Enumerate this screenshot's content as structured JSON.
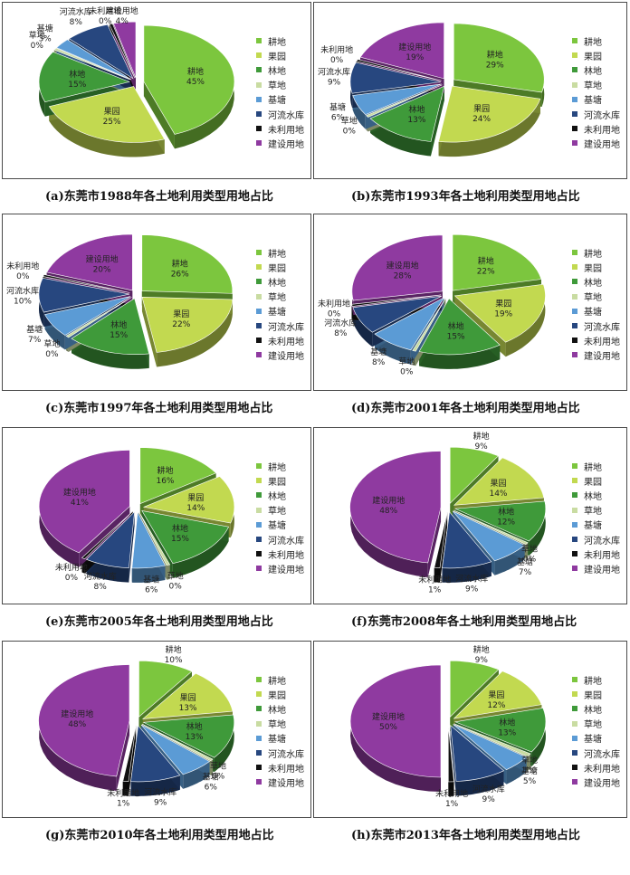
{
  "colors": {
    "耕地": "#7cc63e",
    "果园": "#c2d950",
    "林地": "#3f9a3a",
    "草地": "#c9dca2",
    "基塘": "#5b9bd5",
    "河流水库": "#27477f",
    "未利用地": "#111111",
    "建设用地": "#8f3aa0"
  },
  "legend": [
    "耕地",
    "果园",
    "林地",
    "草地",
    "基塘",
    "河流水库",
    "未利用地",
    "建设用地"
  ],
  "panels": [
    {
      "caption": "(a)东莞市1988年各土地利用类型用地占比"
    },
    {
      "caption": "(b)东莞市1993年各土地利用类型用地占比"
    },
    {
      "caption": "(c)东莞市1997年各土地利用类型用地占比"
    },
    {
      "caption": "(d)东莞市2001年各土地利用类型用地占比"
    },
    {
      "caption": "(e)东莞市2005年各土地利用类型用地占比"
    },
    {
      "caption": "(f)东莞市2008年各土地利用类型用地占比"
    },
    {
      "caption": "(g)东莞市2010年各土地利用类型用地占比"
    },
    {
      "caption": "(h)东莞市2013年各土地利用类型用地占比"
    }
  ],
  "chart_data": [
    {
      "type": "pie",
      "year": "1988",
      "categories": [
        "耕地",
        "果园",
        "林地",
        "草地",
        "基塘",
        "河流水库",
        "未利用地",
        "建设用地"
      ],
      "values": [
        45,
        25,
        15,
        0,
        3,
        8,
        0,
        4
      ],
      "labels": [
        "45%",
        "25%",
        "15%",
        "0%",
        "3%",
        "8%",
        "0%",
        "4%"
      ]
    },
    {
      "type": "pie",
      "year": "1993",
      "categories": [
        "耕地",
        "果园",
        "林地",
        "草地",
        "基塘",
        "河流水库",
        "未利用地",
        "建设用地"
      ],
      "values": [
        29,
        24,
        13,
        0,
        6,
        9,
        0,
        19
      ],
      "labels": [
        "29%",
        "24%",
        "13%",
        "0%",
        "6%",
        "9%",
        "0%",
        "19%"
      ]
    },
    {
      "type": "pie",
      "year": "1997",
      "categories": [
        "耕地",
        "果园",
        "林地",
        "草地",
        "基塘",
        "河流水库",
        "未利用地",
        "建设用地"
      ],
      "values": [
        26,
        22,
        15,
        0,
        7,
        10,
        0,
        20
      ],
      "labels": [
        "26%",
        "22%",
        "15%",
        "0%",
        "7%",
        "10%",
        "0%",
        "20%"
      ]
    },
    {
      "type": "pie",
      "year": "2001",
      "categories": [
        "耕地",
        "果园",
        "林地",
        "草地",
        "基塘",
        "河流水库",
        "未利用地",
        "建设用地"
      ],
      "values": [
        22,
        19,
        15,
        0,
        8,
        8,
        0,
        28
      ],
      "labels": [
        "22%",
        "19%",
        "15%",
        "0%",
        "8%",
        "8%",
        "0%",
        "28%"
      ]
    },
    {
      "type": "pie",
      "year": "2005",
      "categories": [
        "耕地",
        "果园",
        "林地",
        "草地",
        "基塘",
        "河流水库",
        "未利用地",
        "建设用地"
      ],
      "values": [
        16,
        14,
        15,
        0,
        6,
        8,
        0,
        41
      ],
      "labels": [
        "16%",
        "14%",
        "15%",
        "0%",
        "6%",
        "8%",
        "0%",
        "41%"
      ]
    },
    {
      "type": "pie",
      "year": "2008",
      "categories": [
        "耕地",
        "果园",
        "林地",
        "草地",
        "基塘",
        "河流水库",
        "未利用地",
        "建设用地"
      ],
      "values": [
        9,
        14,
        12,
        0,
        7,
        9,
        1,
        48
      ],
      "labels": [
        "9%",
        "14%",
        "12%",
        "0%",
        "7%",
        "9%",
        "1%",
        "48%"
      ]
    },
    {
      "type": "pie",
      "year": "2010",
      "categories": [
        "耕地",
        "果园",
        "林地",
        "草地",
        "基塘",
        "河流水库",
        "未利用地",
        "建设用地"
      ],
      "values": [
        10,
        13,
        13,
        0,
        6,
        9,
        1,
        48
      ],
      "labels": [
        "10%",
        "13%",
        "13%",
        "0%",
        "6%",
        "9%",
        "1%",
        "48%"
      ]
    },
    {
      "type": "pie",
      "year": "2013",
      "categories": [
        "耕地",
        "果园",
        "林地",
        "草地",
        "基塘",
        "河流水库",
        "未利用地",
        "建设用地"
      ],
      "values": [
        9,
        12,
        13,
        1,
        5,
        9,
        1,
        50
      ],
      "labels": [
        "9%",
        "12%",
        "13%",
        "1%",
        "5%",
        "9%",
        "1%",
        "50%"
      ]
    }
  ]
}
